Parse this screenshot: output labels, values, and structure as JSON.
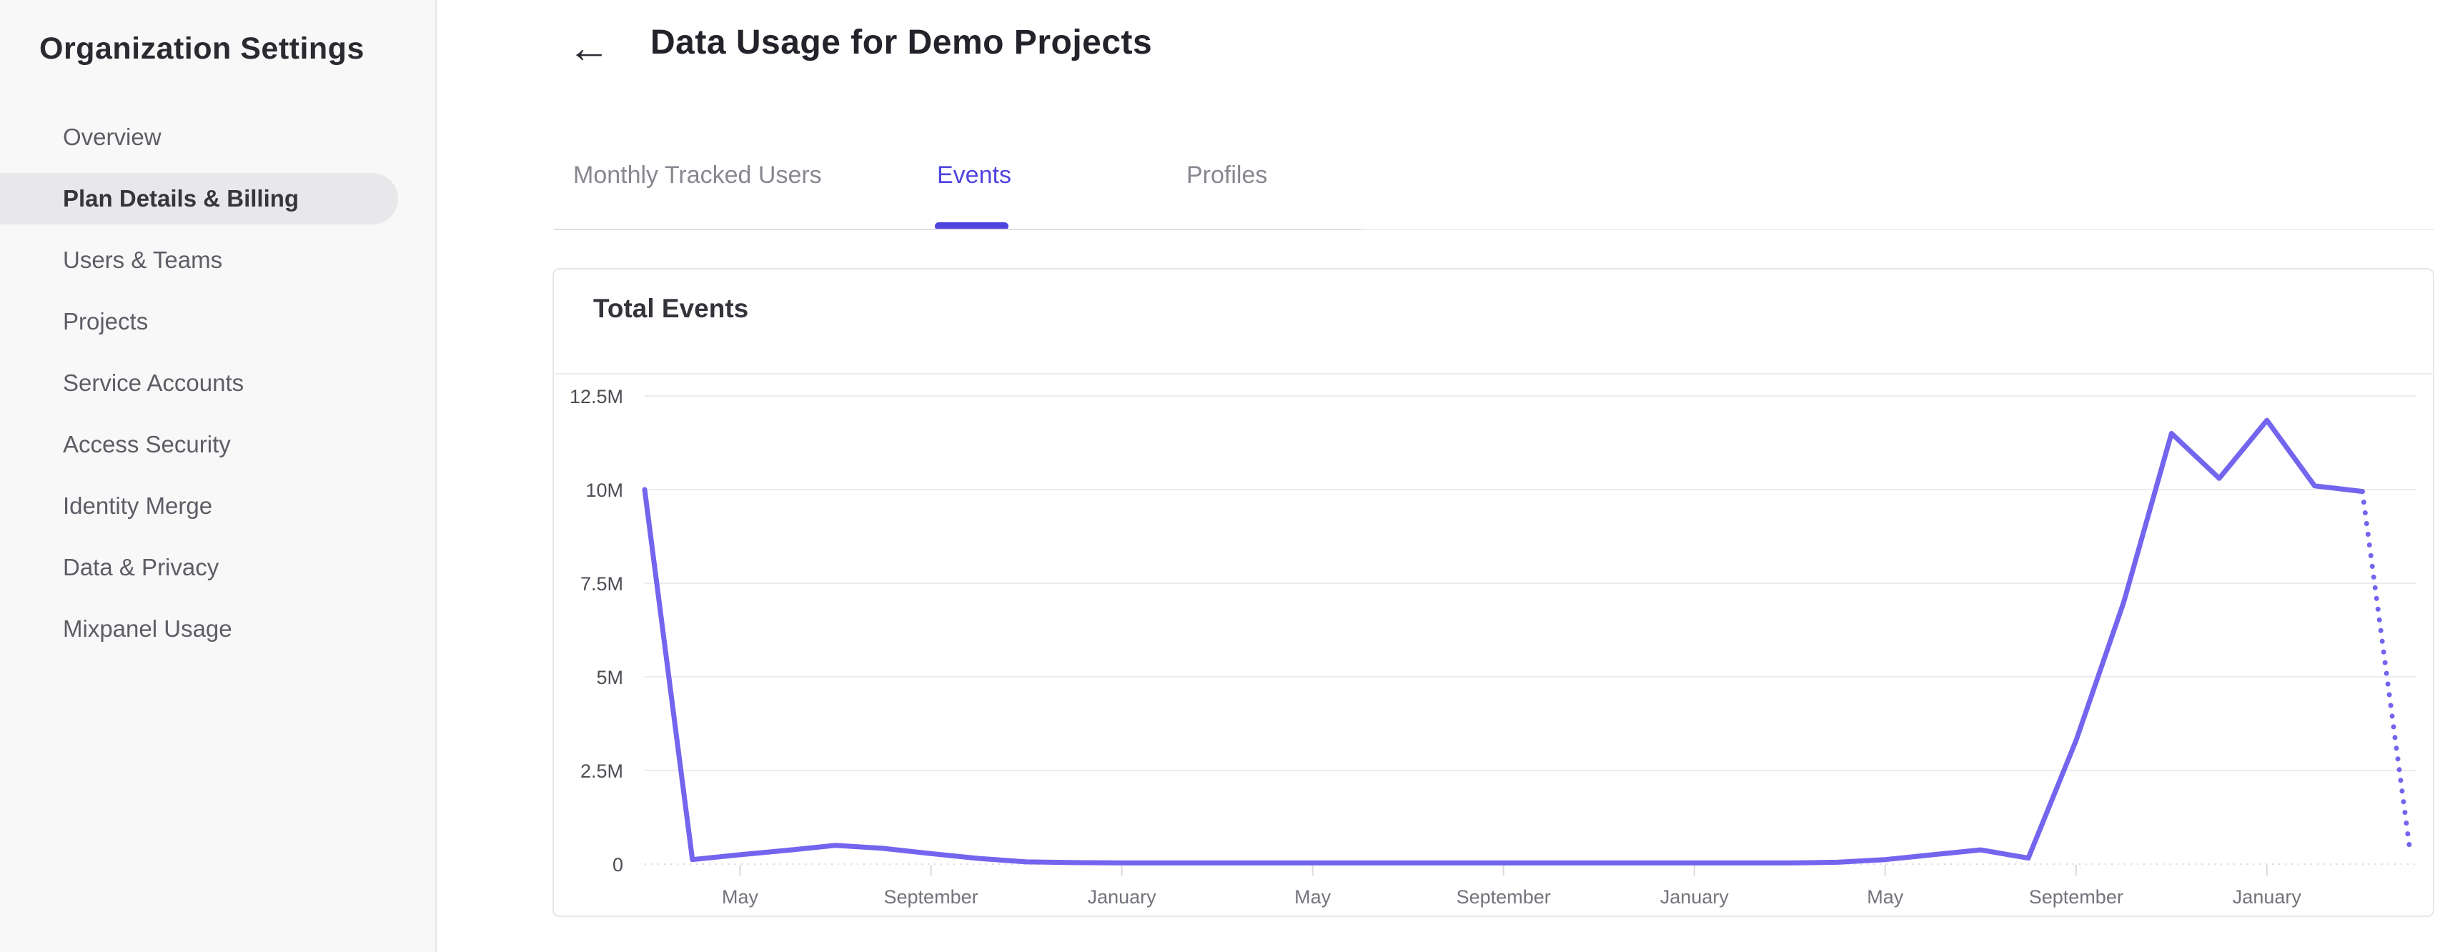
{
  "colors": {
    "accent_purple": "#4f44e0",
    "line_purple": "#7365ee",
    "sidebar_bg": "#f8f8f9",
    "active_item_bg": "#e8e8ea",
    "grid_gray": "#ececef",
    "axis_label_gray": "#73737c"
  },
  "sidebar": {
    "title": "Organization Settings",
    "items": [
      {
        "label": "Overview",
        "active": false
      },
      {
        "label": "Plan Details & Billing",
        "active": true
      },
      {
        "label": "Users & Teams",
        "active": false
      },
      {
        "label": "Projects",
        "active": false
      },
      {
        "label": "Service Accounts",
        "active": false
      },
      {
        "label": "Access Security",
        "active": false
      },
      {
        "label": "Identity Merge",
        "active": false
      },
      {
        "label": "Data & Privacy",
        "active": false
      },
      {
        "label": "Mixpanel Usage",
        "active": false
      }
    ]
  },
  "header": {
    "back_icon": "←",
    "title": "Data Usage for Demo Projects"
  },
  "tabs": [
    {
      "label": "Monthly Tracked Users",
      "active": false
    },
    {
      "label": "Events",
      "active": true
    },
    {
      "label": "Profiles",
      "active": false
    }
  ],
  "card": {
    "title": "Total Events"
  },
  "chart_data": {
    "type": "line",
    "title": "Total Events",
    "ylabel": "",
    "xlabel": "",
    "unit": "events, millions",
    "ylim": [
      0,
      12.5
    ],
    "grid": true,
    "legend": false,
    "y_ticks_bottom_up": [
      "0",
      "2.5M",
      "5M",
      "7.5M",
      "10M",
      "12.5M"
    ],
    "x_tick_labels": [
      "May",
      "September",
      "January",
      "May",
      "September",
      "January",
      "May",
      "September",
      "January"
    ],
    "x_tick_point_indices": [
      2,
      6,
      10,
      14,
      18,
      22,
      26,
      30,
      34
    ],
    "points_are_monthly": true,
    "series": [
      {
        "name": "Total Events",
        "values_millions": [
          10.0,
          0.12,
          0.25,
          0.37,
          0.5,
          0.42,
          0.28,
          0.15,
          0.06,
          0.04,
          0.03,
          0.03,
          0.03,
          0.03,
          0.03,
          0.03,
          0.03,
          0.03,
          0.03,
          0.03,
          0.03,
          0.03,
          0.03,
          0.03,
          0.03,
          0.05,
          0.12,
          0.25,
          0.38,
          0.16,
          3.3,
          7.0,
          11.5,
          10.3,
          11.85,
          10.1,
          9.95,
          0.35
        ],
        "projected_last_n_points_dotted": 1
      }
    ]
  }
}
